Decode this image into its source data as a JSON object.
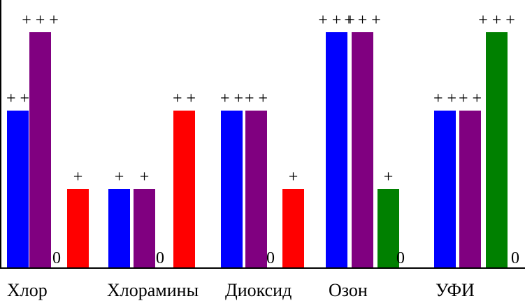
{
  "chart_data": {
    "type": "bar",
    "title": "",
    "xlabel": "",
    "ylabel": "",
    "ylim": [
      0,
      3
    ],
    "grid": false,
    "categories": [
      "Хлор",
      "Хлорамины",
      "Диоксид",
      "Озон",
      "УФИ"
    ],
    "series": [
      {
        "color": "#0000ff",
        "values": [
          2,
          1,
          2,
          3,
          2
        ],
        "labels": [
          "+ +",
          "+",
          "+ + ",
          "+ + +",
          "+ +"
        ]
      },
      {
        "color": "#800080",
        "values": [
          3,
          1,
          2,
          3,
          2
        ],
        "labels": [
          "+ + +",
          "+",
          "+ +",
          "+ + +",
          "+ +"
        ]
      },
      {
        "color_by_category": [
          "#ff0000",
          "#ff0000",
          "#ff0000",
          "#008000",
          "#008000"
        ],
        "values": [
          1,
          2,
          1,
          1,
          3
        ],
        "labels": [
          "+",
          "+ +",
          "+",
          "+",
          "+ + +"
        ]
      }
    ],
    "zero_labels": [
      "0",
      "0",
      "0",
      "0",
      "0"
    ]
  }
}
